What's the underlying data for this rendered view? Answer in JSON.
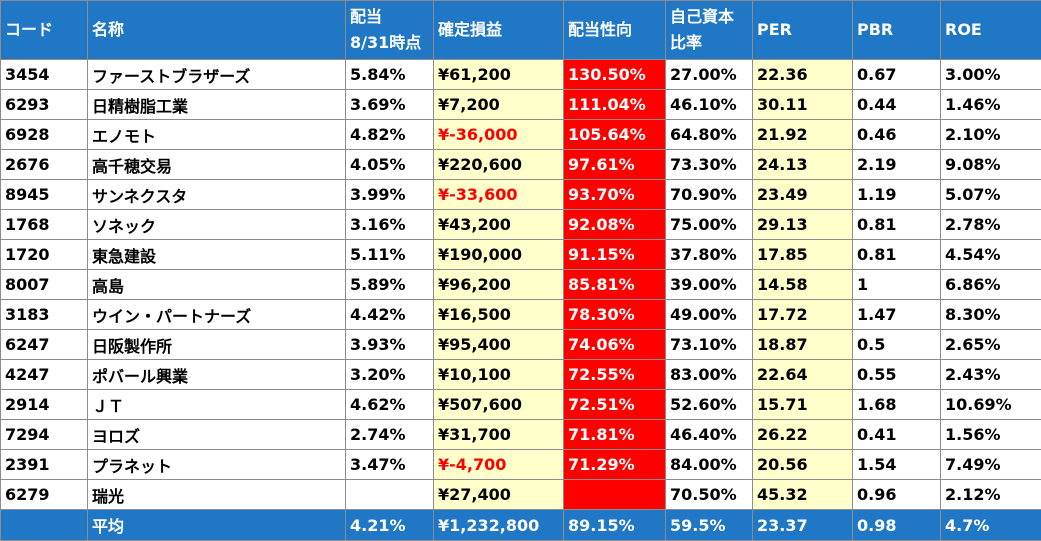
{
  "columns": [
    {
      "key": "code",
      "label": "コード",
      "label2": ""
    },
    {
      "key": "name",
      "label": "名称",
      "label2": ""
    },
    {
      "key": "yield",
      "label": "配当",
      "label2": "8/31時点"
    },
    {
      "key": "gain",
      "label": "確定損益",
      "label2": ""
    },
    {
      "key": "payout",
      "label": "配当性向",
      "label2": ""
    },
    {
      "key": "equity",
      "label": "自己資本",
      "label2": "比率"
    },
    {
      "key": "per",
      "label": "PER",
      "label2": ""
    },
    {
      "key": "pbr",
      "label": "PBR",
      "label2": ""
    },
    {
      "key": "roe",
      "label": "ROE",
      "label2": ""
    }
  ],
  "rows": [
    {
      "code": "3454",
      "name": "ファーストブラザーズ",
      "yield": "5.84%",
      "gain": "¥61,200",
      "payout": "130.50%",
      "equity": "27.00%",
      "per": "22.36",
      "pbr": "0.67",
      "roe": "3.00%"
    },
    {
      "code": "6293",
      "name": "日精樹脂工業",
      "yield": "3.69%",
      "gain": "¥7,200",
      "payout": "111.04%",
      "equity": "46.10%",
      "per": "30.11",
      "pbr": "0.44",
      "roe": "1.46%"
    },
    {
      "code": "6928",
      "name": "エノモト",
      "yield": "4.82%",
      "gain": "¥-36,000",
      "payout": "105.64%",
      "equity": "64.80%",
      "per": "21.92",
      "pbr": "0.46",
      "roe": "2.10%"
    },
    {
      "code": "2676",
      "name": "高千穂交易",
      "yield": "4.05%",
      "gain": "¥220,600",
      "payout": "97.61%",
      "equity": "73.30%",
      "per": "24.13",
      "pbr": "2.19",
      "roe": "9.08%"
    },
    {
      "code": "8945",
      "name": "サンネクスタ",
      "yield": "3.99%",
      "gain": "¥-33,600",
      "payout": "93.70%",
      "equity": "70.90%",
      "per": "23.49",
      "pbr": "1.19",
      "roe": "5.07%"
    },
    {
      "code": "1768",
      "name": "ソネック",
      "yield": "3.16%",
      "gain": "¥43,200",
      "payout": "92.08%",
      "equity": "75.00%",
      "per": "29.13",
      "pbr": "0.81",
      "roe": "2.78%"
    },
    {
      "code": "1720",
      "name": "東急建設",
      "yield": "5.11%",
      "gain": "¥190,000",
      "payout": "91.15%",
      "equity": "37.80%",
      "per": "17.85",
      "pbr": "0.81",
      "roe": "4.54%"
    },
    {
      "code": "8007",
      "name": "高島",
      "yield": "5.89%",
      "gain": "¥96,200",
      "payout": "85.81%",
      "equity": "39.00%",
      "per": "14.58",
      "pbr": "1",
      "roe": "6.86%"
    },
    {
      "code": "3183",
      "name": "ウイン・パートナーズ",
      "yield": "4.42%",
      "gain": "¥16,500",
      "payout": "78.30%",
      "equity": "49.00%",
      "per": "17.72",
      "pbr": "1.47",
      "roe": "8.30%"
    },
    {
      "code": "6247",
      "name": "日阪製作所",
      "yield": "3.93%",
      "gain": "¥95,400",
      "payout": "74.06%",
      "equity": "73.10%",
      "per": "18.87",
      "pbr": "0.5",
      "roe": "2.65%"
    },
    {
      "code": "4247",
      "name": "ポバール興業",
      "yield": "3.20%",
      "gain": "¥10,100",
      "payout": "72.55%",
      "equity": "83.00%",
      "per": "22.64",
      "pbr": "0.55",
      "roe": "2.43%"
    },
    {
      "code": "2914",
      "name": "ＪＴ",
      "yield": "4.62%",
      "gain": "¥507,600",
      "payout": "72.51%",
      "equity": "52.60%",
      "per": "15.71",
      "pbr": "1.68",
      "roe": "10.69%"
    },
    {
      "code": "7294",
      "name": "ヨロズ",
      "yield": "2.74%",
      "gain": "¥31,700",
      "payout": "71.81%",
      "equity": "46.40%",
      "per": "26.22",
      "pbr": "0.41",
      "roe": "1.56%"
    },
    {
      "code": "2391",
      "name": "プラネット",
      "yield": "3.47%",
      "gain": "¥-4,700",
      "payout": "71.29%",
      "equity": "84.00%",
      "per": "20.56",
      "pbr": "1.54",
      "roe": "7.49%"
    },
    {
      "code": "6279",
      "name": "瑞光",
      "yield": "",
      "gain": "¥27,400",
      "payout": "",
      "equity": "70.50%",
      "per": "45.32",
      "pbr": "0.96",
      "roe": "2.12%"
    }
  ],
  "footer": {
    "code": "",
    "name": "平均",
    "yield": "4.21%",
    "gain": "¥1,232,800",
    "payout": "89.15%",
    "equity": "59.5%",
    "per": "23.37",
    "pbr": "0.98",
    "roe": "4.7%"
  },
  "colors": {
    "header_bg": "#1f77c6",
    "highlight_pale": "#ffffcc",
    "highlight_red": "#ff0000",
    "negative_text": "#ff0000",
    "border": "#8c8c8c"
  }
}
